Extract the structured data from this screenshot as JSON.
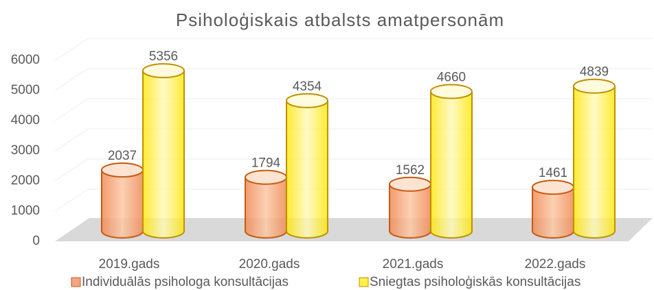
{
  "chart_data": {
    "type": "cylinder",
    "title": "Psiholoģiskais atbalsts amatpersonām",
    "categories": [
      "2019.gads",
      "2020.gads",
      "2021.gads",
      "2022.gads"
    ],
    "series": [
      {
        "name": "Individuālās psihologa konsultācijas",
        "color": "#f4a582",
        "values": [
          2037,
          1794,
          1562,
          1461
        ]
      },
      {
        "name": "Sniegtas psiholoģiskās konsultācijas",
        "color": "#fff04a",
        "values": [
          5356,
          4354,
          4660,
          4839
        ]
      }
    ],
    "ylim": [
      0,
      6000
    ],
    "yticks": [
      0,
      1000,
      2000,
      3000,
      4000,
      5000,
      6000
    ],
    "grid": true,
    "legend": "bottom"
  }
}
